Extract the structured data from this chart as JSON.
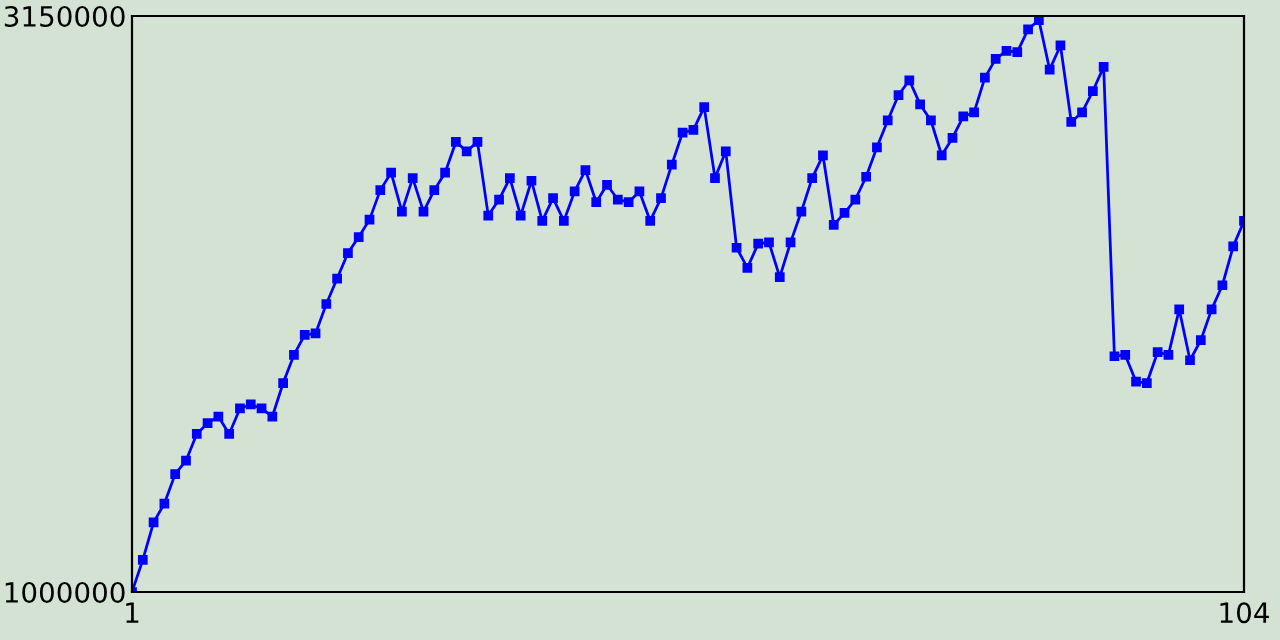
{
  "chart_data": {
    "type": "line",
    "x": [
      1,
      2,
      3,
      4,
      5,
      6,
      7,
      8,
      9,
      10,
      11,
      12,
      13,
      14,
      15,
      16,
      17,
      18,
      19,
      20,
      21,
      22,
      23,
      24,
      25,
      26,
      27,
      28,
      29,
      30,
      31,
      32,
      33,
      34,
      35,
      36,
      37,
      38,
      39,
      40,
      41,
      42,
      43,
      44,
      45,
      46,
      47,
      48,
      49,
      50,
      51,
      52,
      53,
      54,
      55,
      56,
      57,
      58,
      59,
      60,
      61,
      62,
      63,
      64,
      65,
      66,
      67,
      68,
      69,
      70,
      71,
      72,
      73,
      74,
      75,
      76,
      77,
      78,
      79,
      80,
      81,
      82,
      83,
      84,
      85,
      86,
      87,
      88,
      89,
      90,
      91,
      92,
      93,
      94,
      95,
      96,
      97,
      98,
      99,
      100,
      101,
      102,
      103,
      104
    ],
    "series": [
      {
        "color": "#0000ff",
        "values": [
          1000000,
          1120000,
          1260000,
          1330000,
          1440000,
          1490000,
          1590000,
          1630000,
          1655000,
          1590000,
          1685000,
          1700000,
          1685000,
          1655000,
          1780000,
          1885000,
          1960000,
          1965000,
          2075000,
          2170000,
          2265000,
          2325000,
          2390000,
          2500000,
          2565000,
          2420000,
          2545000,
          2420000,
          2500000,
          2565000,
          2680000,
          2645000,
          2680000,
          2405000,
          2465000,
          2545000,
          2405000,
          2535000,
          2385000,
          2470000,
          2385000,
          2495000,
          2575000,
          2455000,
          2520000,
          2465000,
          2455000,
          2495000,
          2385000,
          2470000,
          2595000,
          2715000,
          2725000,
          2810000,
          2545000,
          2645000,
          2285000,
          2210000,
          2300000,
          2305000,
          2175000,
          2305000,
          2420000,
          2545000,
          2630000,
          2370000,
          2415000,
          2465000,
          2550000,
          2660000,
          2760000,
          2855000,
          2910000,
          2820000,
          2760000,
          2630000,
          2695000,
          2775000,
          2790000,
          2920000,
          2990000,
          3020000,
          3015000,
          3100000,
          3135000,
          2950000,
          3040000,
          2755000,
          2790000,
          2870000,
          2960000,
          1880000,
          1885000,
          1785000,
          1780000,
          1895000,
          1885000,
          2055000,
          1865000,
          1940000,
          2055000,
          2145000,
          2290000,
          2385000
        ]
      }
    ],
    "xlim": [
      1,
      104
    ],
    "xticks": [
      1,
      104
    ],
    "ylim": [
      1000000,
      3150000
    ],
    "yticks": [
      1000000,
      3150000
    ],
    "marker": "square",
    "line_style": "solid",
    "grid": false,
    "legend": false
  }
}
